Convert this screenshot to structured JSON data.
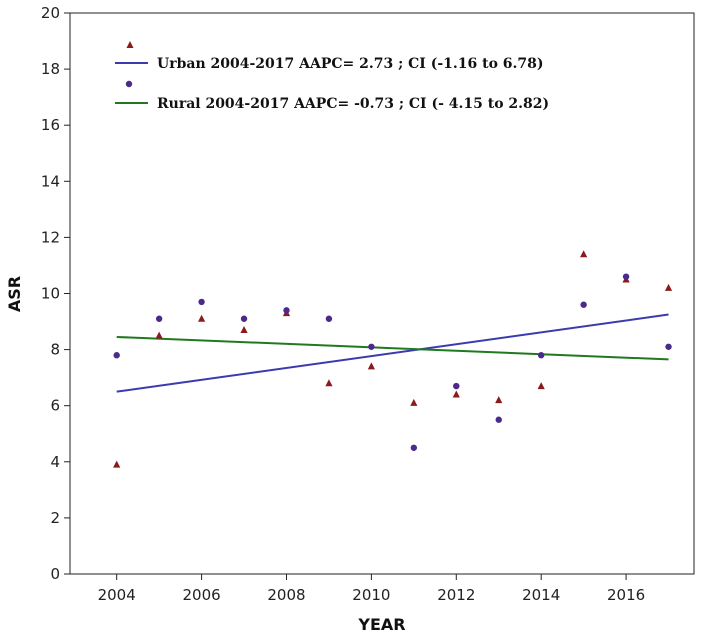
{
  "chart_data": {
    "type": "scatter",
    "xlabel": "YEAR",
    "ylabel": "ASR",
    "xlim": [
      2002.9,
      2017.6
    ],
    "ylim": [
      0,
      20
    ],
    "x_ticks": [
      2004,
      2006,
      2008,
      2010,
      2012,
      2014,
      2016
    ],
    "y_ticks": [
      0,
      2,
      4,
      6,
      8,
      10,
      12,
      14,
      16,
      18,
      20
    ],
    "grid": false,
    "legend_position": "top-left",
    "series": [
      {
        "name": "Urban",
        "marker": "triangle",
        "color": "#8b1a1a",
        "x": [
          2004,
          2005,
          2006,
          2007,
          2008,
          2009,
          2010,
          2011,
          2012,
          2013,
          2014,
          2015,
          2016,
          2017
        ],
        "y": [
          3.9,
          8.5,
          9.1,
          8.7,
          9.3,
          6.8,
          7.4,
          6.1,
          6.4,
          6.2,
          6.7,
          11.4,
          10.5,
          10.2
        ]
      },
      {
        "name": "Rural",
        "marker": "circle",
        "color": "#4b2a8c",
        "x": [
          2004,
          2005,
          2006,
          2007,
          2008,
          2009,
          2010,
          2011,
          2012,
          2013,
          2014,
          2015,
          2016,
          2017
        ],
        "y": [
          7.8,
          9.1,
          9.7,
          9.1,
          9.4,
          9.1,
          8.1,
          4.5,
          6.7,
          5.5,
          7.8,
          9.6,
          10.6,
          8.1
        ]
      }
    ],
    "trend_lines": [
      {
        "label": "Urban 2004-2017 AAPC= 2.73 ; CI (-1.16 to 6.78)",
        "color": "#3b3bb0",
        "x": [
          2004,
          2017
        ],
        "y": [
          6.5,
          9.25
        ]
      },
      {
        "label": "Rural 2004-2017 AAPC= -0.73 ; CI (- 4.15 to 2.82)",
        "color": "#1f7a1f",
        "x": [
          2004,
          2017
        ],
        "y": [
          8.45,
          7.65
        ]
      }
    ]
  }
}
